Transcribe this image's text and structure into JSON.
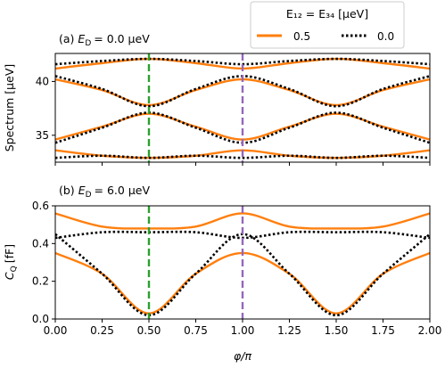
{
  "chart_data": {
    "type": "line",
    "legend": {
      "title": "E₁₂ = E₃₄ [μeV]",
      "entries": [
        {
          "label": "0.5",
          "style": "solid",
          "color": "#ff7f0e"
        },
        {
          "label": "0.0",
          "style": "dotted",
          "color": "#000000"
        }
      ],
      "placement": "top-right"
    },
    "colors": {
      "orange": "#ff7f0e",
      "black": "#000000",
      "green": "#2ca02c",
      "purple": "#9467bd"
    },
    "vlines": [
      {
        "x": 0.5,
        "color": "#2ca02c",
        "style": "dashed"
      },
      {
        "x": 1.0,
        "color": "#9467bd",
        "style": "dashed"
      }
    ],
    "x": [
      0.0,
      0.25,
      0.5,
      0.75,
      1.0,
      1.25,
      1.5,
      1.75,
      2.0
    ],
    "xlabel": "φ/π",
    "xlim": [
      0,
      2
    ],
    "xticks": [
      "0.00",
      "0.25",
      "0.50",
      "0.75",
      "1.00",
      "1.25",
      "1.50",
      "1.75",
      "2.00"
    ],
    "panels": [
      {
        "label": "(a)",
        "subtitle_var": "E",
        "subtitle_sub": "D",
        "subtitle_value": "= 0.0 μeV",
        "ylabel": "Spectrum [μeV]",
        "ylim": [
          32.5,
          42.6
        ],
        "yticks": [
          35,
          40
        ],
        "series": [
          {
            "name": "0.5",
            "values": [
              33.6,
              33.1,
              32.9,
              33.1,
              33.6,
              33.1,
              32.9,
              33.1,
              33.6
            ]
          },
          {
            "name": "0.5",
            "values": [
              34.6,
              35.8,
              37.0,
              35.8,
              34.6,
              35.8,
              37.0,
              35.8,
              34.6
            ]
          },
          {
            "name": "0.5",
            "values": [
              40.2,
              39.2,
              37.8,
              39.2,
              40.2,
              39.2,
              37.8,
              39.2,
              40.2
            ]
          },
          {
            "name": "0.5",
            "values": [
              41.2,
              41.7,
              42.1,
              41.7,
              41.2,
              41.7,
              42.1,
              41.7,
              41.2
            ]
          },
          {
            "name": "0.0",
            "values": [
              32.9,
              33.1,
              32.9,
              33.1,
              32.9,
              33.1,
              32.9,
              33.1,
              32.9
            ]
          },
          {
            "name": "0.0",
            "values": [
              34.3,
              35.7,
              37.1,
              35.7,
              34.3,
              35.7,
              37.1,
              35.7,
              34.3
            ]
          },
          {
            "name": "0.0",
            "values": [
              40.5,
              39.3,
              37.7,
              39.3,
              40.5,
              39.3,
              37.7,
              39.3,
              40.5
            ]
          },
          {
            "name": "0.0",
            "values": [
              41.6,
              41.9,
              42.1,
              41.9,
              41.6,
              41.9,
              42.1,
              41.9,
              41.6
            ]
          }
        ]
      },
      {
        "label": "(b)",
        "subtitle_var": "E",
        "subtitle_sub": "D",
        "subtitle_value": "= 6.0 μeV",
        "ylabel_var": "C",
        "ylabel_sub": "Q",
        "ylabel_unit": "[fF]",
        "ylim": [
          0.0,
          0.6
        ],
        "yticks": [
          "0.0",
          "0.2",
          "0.4",
          "0.6"
        ],
        "series": [
          {
            "name": "0.5",
            "values": [
              0.56,
              0.49,
              0.48,
              0.49,
              0.56,
              0.49,
              0.48,
              0.49,
              0.56
            ]
          },
          {
            "name": "0.5",
            "values": [
              0.35,
              0.24,
              0.03,
              0.24,
              0.35,
              0.24,
              0.03,
              0.24,
              0.35
            ]
          },
          {
            "name": "0.0",
            "values": [
              0.43,
              0.46,
              0.46,
              0.46,
              0.43,
              0.46,
              0.46,
              0.46,
              0.43
            ]
          },
          {
            "name": "0.0",
            "values": [
              0.45,
              0.24,
              0.02,
              0.24,
              0.45,
              0.24,
              0.02,
              0.24,
              0.45
            ]
          }
        ]
      }
    ]
  }
}
